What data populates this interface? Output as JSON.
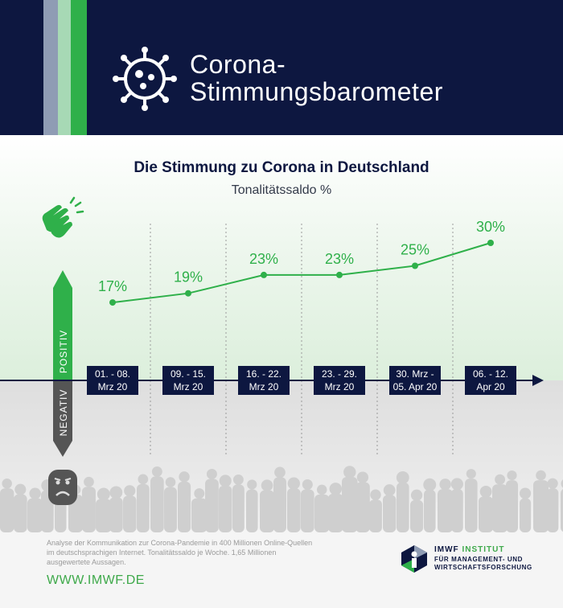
{
  "header": {
    "title_line1": "Corona-",
    "title_line2": "Stimmungsbarometer",
    "icon": "virus-icon"
  },
  "chart_data": {
    "type": "line",
    "title": "Die Stimmung zu Corona in Deutschland",
    "subtitle": "Tonalitätssaldo %",
    "categories": [
      [
        "01. - 08.",
        "Mrz 20"
      ],
      [
        "09. - 15.",
        "Mrz 20"
      ],
      [
        "16. - 22.",
        "Mrz 20"
      ],
      [
        "23. - 29.",
        "Mrz 20"
      ],
      [
        "30. Mrz -",
        "05. Apr 20"
      ],
      [
        "06. - 12.",
        "Apr 20"
      ]
    ],
    "values": [
      17,
      19,
      23,
      23,
      25,
      30
    ],
    "value_labels": [
      "17%",
      "19%",
      "23%",
      "23%",
      "25%",
      "30%"
    ],
    "axis_positive_label": "POSITIV",
    "axis_negative_label": "NEGATIV",
    "positive_icon": "clapping-hands-icon",
    "negative_icon": "sad-face-icon",
    "ylim": [
      -15,
      32
    ],
    "grid": "vertical-dotted",
    "line_color": "#2fb04a",
    "positive_color": "#2fb04a",
    "negative_color": "#555555"
  },
  "footer": {
    "description": "Analyse der Kommunikation zur Corona-Pandemie in 400 Millionen Online-Quellen im deutschsprachigen Internet. Tonalitätssaldo je Woche. 1,65 Millionen ausgewertete Aussagen.",
    "url": "WWW.IMWF.DE",
    "logo_name": "IMWF",
    "logo_name_accent": "INSTITUT",
    "logo_sub_line1": "FÜR MANAGEMENT- UND",
    "logo_sub_line2": "WIRTSCHAFTSFORSCHUNG"
  },
  "colors": {
    "navy": "#0d1740",
    "green": "#2fb04a",
    "grey": "#555555"
  }
}
